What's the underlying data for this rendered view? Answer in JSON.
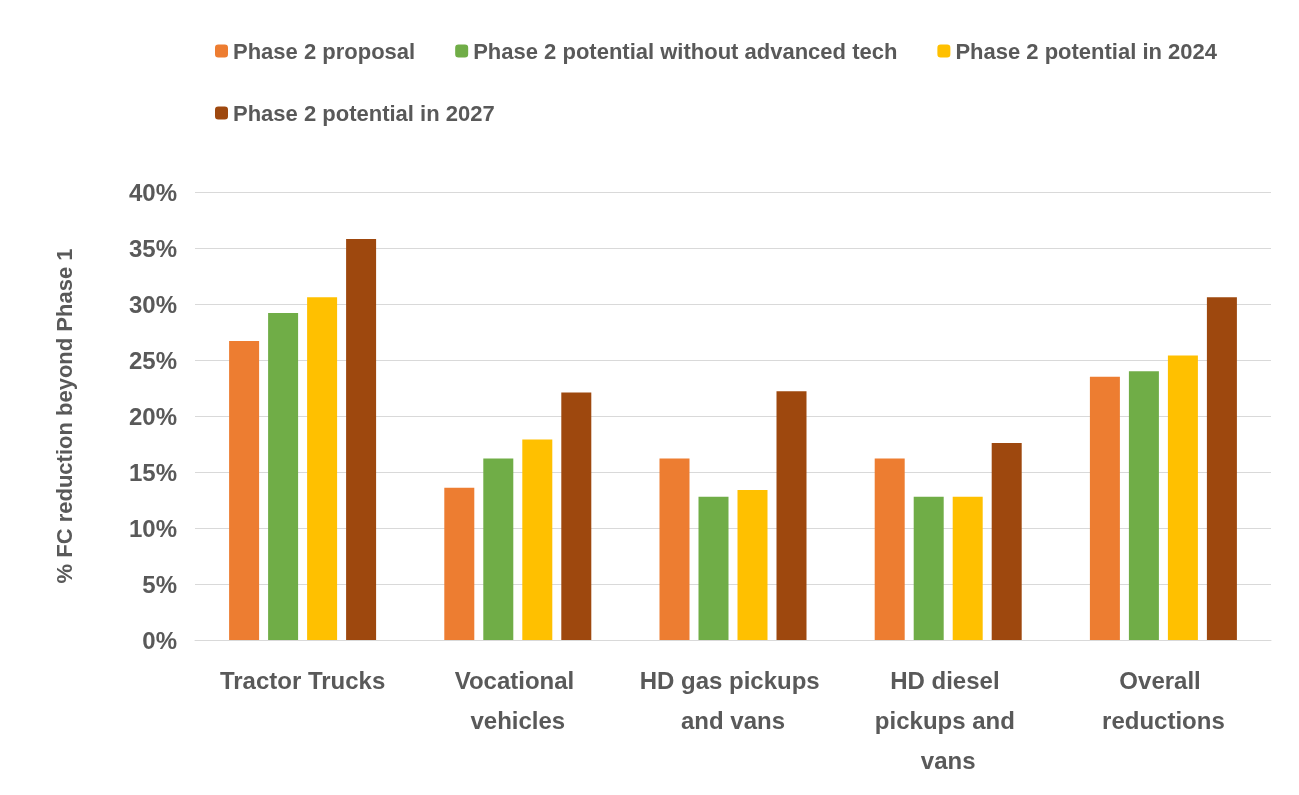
{
  "chart_data": {
    "type": "bar",
    "ylabel": "% FC reduction beyond Phase 1",
    "categories": [
      "Tractor Trucks",
      "Vocational vehicles",
      "HD gas pickups and vans",
      "HD diesel pickups and vans",
      "Overall reductions"
    ],
    "series": [
      {
        "name": "Phase 2 proposal",
        "color": "#ed7d31",
        "values": [
          26.7,
          13.6,
          16.2,
          16.2,
          23.5
        ]
      },
      {
        "name": "Phase 2 potential without advanced tech",
        "color": "#70ad47",
        "values": [
          29.2,
          16.2,
          12.8,
          12.8,
          24.0
        ]
      },
      {
        "name": "Phase 2 potential in 2024",
        "color": "#ffc000",
        "values": [
          30.6,
          17.9,
          13.4,
          12.8,
          25.4
        ]
      },
      {
        "name": "Phase 2 potential in 2027",
        "color": "#9e480e",
        "values": [
          35.8,
          22.1,
          22.2,
          17.6,
          30.6
        ]
      }
    ],
    "ylim": [
      0,
      40
    ],
    "yticks": [
      {
        "value": 0,
        "label": "0%"
      },
      {
        "value": 5,
        "label": "5%"
      },
      {
        "value": 10,
        "label": "10%"
      },
      {
        "value": 15,
        "label": "15%"
      },
      {
        "value": 20,
        "label": "20%"
      },
      {
        "value": 25,
        "label": "25%"
      },
      {
        "value": 30,
        "label": "30%"
      },
      {
        "value": 35,
        "label": "35%"
      },
      {
        "value": 40,
        "label": "40%"
      }
    ],
    "grid": "y",
    "legend": "top"
  }
}
